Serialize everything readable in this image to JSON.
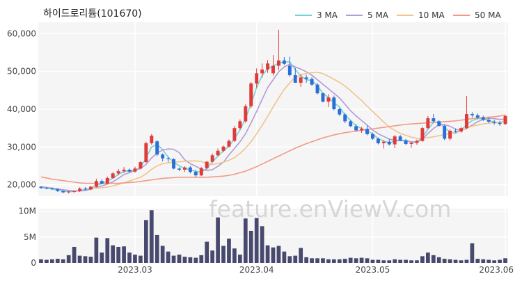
{
  "chart_data": [
    {
      "type": "candlestick",
      "title": "하이드로리튬(101670)",
      "legend_placement": "top-right",
      "legend": [
        {
          "name": "3 MA",
          "color": "#6fd3d0"
        },
        {
          "name": "5 MA",
          "color": "#b39ad8"
        },
        {
          "name": "10 MA",
          "color": "#f2c38a"
        },
        {
          "name": "50 MA",
          "color": "#f29a85"
        }
      ],
      "up_color": "#e03a3a",
      "down_color": "#2a6fd6",
      "ylim": [
        17000,
        63000
      ],
      "y_ticks": [
        20000,
        30000,
        40000,
        50000,
        60000
      ],
      "y_tick_labels": [
        "20,000",
        "30,000",
        "40,000",
        "50,000",
        "60,000"
      ],
      "x_ticks": [
        {
          "i": 17,
          "label": "2023.03"
        },
        {
          "i": 39,
          "label": "2023.04"
        },
        {
          "i": 60,
          "label": "2023.05"
        },
        {
          "i": 84,
          "label": "2023.06"
        }
      ],
      "grid": true,
      "candles": [
        [
          19500,
          19600,
          18900,
          19200
        ],
        [
          19200,
          19400,
          18800,
          19100
        ],
        [
          19100,
          19300,
          18600,
          18900
        ],
        [
          18900,
          19000,
          18100,
          18400
        ],
        [
          18400,
          18600,
          17800,
          18000
        ],
        [
          18000,
          18400,
          17700,
          18200
        ],
        [
          18200,
          18500,
          17900,
          18300
        ],
        [
          18300,
          19300,
          18100,
          19000
        ],
        [
          19000,
          19400,
          18500,
          18800
        ],
        [
          18800,
          19700,
          18600,
          19500
        ],
        [
          19500,
          21600,
          19300,
          21000
        ],
        [
          21000,
          21500,
          20100,
          20300
        ],
        [
          20300,
          22200,
          20100,
          21800
        ],
        [
          21800,
          23400,
          21600,
          23000
        ],
        [
          23000,
          24200,
          22500,
          23600
        ],
        [
          23600,
          24700,
          23100,
          24000
        ],
        [
          24000,
          24300,
          23100,
          23500
        ],
        [
          23500,
          24800,
          23200,
          24300
        ],
        [
          24300,
          26300,
          24100,
          26000
        ],
        [
          26000,
          31400,
          25800,
          31000
        ],
        [
          31000,
          33400,
          30600,
          33000
        ],
        [
          31500,
          31800,
          27600,
          28000
        ],
        [
          28000,
          28300,
          26200,
          27000
        ],
        [
          27000,
          27400,
          26000,
          26800
        ],
        [
          26800,
          27000,
          24100,
          24300
        ],
        [
          24300,
          24600,
          23600,
          24000
        ],
        [
          24000,
          24900,
          23400,
          24600
        ],
        [
          24600,
          25000,
          23000,
          23400
        ],
        [
          23400,
          24000,
          22000,
          22500
        ],
        [
          22500,
          24700,
          22300,
          24400
        ],
        [
          24400,
          26300,
          24100,
          26100
        ],
        [
          26100,
          28300,
          25900,
          27800
        ],
        [
          27800,
          29600,
          27600,
          29000
        ],
        [
          29000,
          30400,
          28600,
          30100
        ],
        [
          30100,
          32000,
          29900,
          31600
        ],
        [
          31600,
          35600,
          31400,
          35000
        ],
        [
          35000,
          37300,
          34500,
          36800
        ],
        [
          36800,
          41300,
          36400,
          40800
        ],
        [
          40800,
          47200,
          40300,
          46800
        ],
        [
          46800,
          50800,
          45700,
          49500
        ],
        [
          49500,
          52100,
          48400,
          50500
        ],
        [
          50500,
          53000,
          49600,
          52100
        ],
        [
          49500,
          54300,
          48900,
          51500
        ],
        [
          51500,
          61000,
          50300,
          52900
        ],
        [
          52900,
          53800,
          51700,
          52000
        ],
        [
          51500,
          53900,
          48600,
          49000
        ],
        [
          49000,
          50900,
          47300,
          47000
        ],
        [
          47000,
          49300,
          45900,
          48400
        ],
        [
          48400,
          49100,
          47000,
          48000
        ],
        [
          48000,
          48500,
          46200,
          46500
        ],
        [
          46500,
          46900,
          43900,
          44200
        ],
        [
          44200,
          44400,
          41800,
          42000
        ],
        [
          42000,
          44000,
          40600,
          43100
        ],
        [
          43100,
          43600,
          39700,
          40000
        ],
        [
          40000,
          40400,
          38200,
          38600
        ],
        [
          38600,
          39000,
          36300,
          36800
        ],
        [
          36800,
          37200,
          35300,
          35500
        ],
        [
          35500,
          36100,
          34100,
          34400
        ],
        [
          34400,
          35300,
          33700,
          34800
        ],
        [
          34800,
          35700,
          33100,
          33400
        ],
        [
          33400,
          33800,
          31900,
          32200
        ],
        [
          32200,
          32500,
          30700,
          31000
        ],
        [
          31000,
          31800,
          29600,
          31400
        ],
        [
          31400,
          32100,
          30400,
          30700
        ],
        [
          30700,
          33200,
          29700,
          32800
        ],
        [
          32800,
          33200,
          31500,
          31700
        ],
        [
          31700,
          32100,
          30500,
          30800
        ],
        [
          30800,
          31300,
          29800,
          31100
        ],
        [
          31100,
          32000,
          30600,
          31600
        ],
        [
          31600,
          35400,
          31400,
          35000
        ],
        [
          35000,
          38200,
          34700,
          37600
        ],
        [
          37600,
          38700,
          36400,
          36800
        ],
        [
          36800,
          37100,
          35400,
          35600
        ],
        [
          35600,
          36000,
          31800,
          32200
        ],
        [
          32200,
          34700,
          31700,
          34300
        ],
        [
          34300,
          34900,
          33800,
          34100
        ],
        [
          34100,
          35300,
          33800,
          35000
        ],
        [
          35000,
          43500,
          34700,
          38700
        ],
        [
          38700,
          39200,
          37800,
          38400
        ],
        [
          38400,
          38900,
          37400,
          37800
        ],
        [
          37800,
          38300,
          36900,
          37200
        ],
        [
          37200,
          37800,
          36300,
          36700
        ],
        [
          36700,
          37200,
          35900,
          36400
        ],
        [
          36400,
          36900,
          35600,
          36100
        ],
        [
          36100,
          38500,
          35800,
          38200
        ]
      ],
      "ma": {
        "3 MA": [
          19300,
          19100,
          18900,
          18600,
          18300,
          18200,
          18200,
          18500,
          18700,
          19100,
          19800,
          20300,
          21000,
          21700,
          22800,
          23500,
          23700,
          23800,
          24600,
          27100,
          30000,
          30700,
          29300,
          27300,
          26000,
          25000,
          24300,
          24000,
          23500,
          23400,
          24300,
          26100,
          27600,
          29000,
          30200,
          32200,
          34500,
          37500,
          41500,
          45700,
          48900,
          50700,
          51400,
          52200,
          52500,
          52500,
          50500,
          48800,
          47800,
          47600,
          46200,
          44200,
          43100,
          41700,
          40600,
          38500,
          37000,
          35600,
          34900,
          34300,
          33500,
          32200,
          31600,
          31100,
          31600,
          31700,
          31800,
          31300,
          31200,
          32600,
          34700,
          36500,
          36700,
          35100,
          34000,
          33600,
          34500,
          35900,
          37000,
          37500,
          37500,
          37000,
          36600,
          36400,
          37000
        ],
        "5 MA": [
          19500,
          19300,
          19100,
          18900,
          18700,
          18500,
          18400,
          18400,
          18500,
          18800,
          19300,
          19700,
          20200,
          20800,
          21700,
          22700,
          23200,
          23800,
          24300,
          25400,
          27100,
          28400,
          29200,
          29500,
          29400,
          28500,
          26600,
          25600,
          24900,
          24100,
          23800,
          24000,
          24900,
          26000,
          27900,
          29600,
          31400,
          33500,
          36400,
          39400,
          42600,
          45700,
          47800,
          49900,
          51200,
          51900,
          51200,
          50600,
          49900,
          49000,
          47800,
          46600,
          45400,
          44200,
          43000,
          41300,
          39600,
          38200,
          37000,
          35800,
          34500,
          33500,
          32800,
          32100,
          31800,
          31800,
          31500,
          31400,
          31300,
          32100,
          33600,
          34900,
          35900,
          35900,
          35500,
          34700,
          34400,
          34900,
          35800,
          36700,
          37300,
          37600,
          37500,
          37300,
          37400
        ],
        "10 MA": [
          null,
          null,
          null,
          null,
          null,
          null,
          null,
          null,
          null,
          19100,
          19100,
          19200,
          19400,
          19700,
          20100,
          20500,
          21000,
          21500,
          22000,
          22900,
          24100,
          25000,
          25600,
          25800,
          26000,
          26100,
          26200,
          26300,
          26300,
          26200,
          25600,
          25400,
          25600,
          26000,
          26500,
          27200,
          28300,
          29700,
          31400,
          33500,
          35700,
          38100,
          40600,
          43000,
          45200,
          47000,
          48400,
          49000,
          49500,
          49700,
          49800,
          49400,
          48700,
          47900,
          47100,
          46100,
          44900,
          43600,
          42300,
          40800,
          39400,
          38000,
          36600,
          35300,
          34400,
          33600,
          33100,
          32600,
          32300,
          32300,
          32500,
          32700,
          33000,
          33300,
          33600,
          34000,
          34500,
          35000,
          35500,
          35800,
          36100,
          36300,
          36400,
          36500,
          36800
        ],
        "50 MA": [
          22100,
          21800,
          21500,
          21300,
          21100,
          20900,
          20700,
          20500,
          20400,
          20400,
          20400,
          20400,
          20400,
          20400,
          20400,
          20500,
          20600,
          20700,
          20900,
          21100,
          21300,
          21500,
          21700,
          21800,
          21900,
          22000,
          22000,
          22000,
          22000,
          22000,
          22000,
          22100,
          22200,
          22300,
          22500,
          22800,
          23200,
          23600,
          24200,
          24800,
          25500,
          26200,
          26900,
          27600,
          28300,
          29000,
          29700,
          30300,
          30900,
          31400,
          31900,
          32400,
          32800,
          33200,
          33500,
          33800,
          34000,
          34200,
          34400,
          34600,
          34800,
          35000,
          35200,
          35400,
          35600,
          35800,
          36000,
          36100,
          36200,
          36300,
          36400,
          36500,
          36600,
          36700,
          36800,
          36900,
          37100,
          37300,
          37500,
          37700,
          37800,
          37900,
          38000,
          38200,
          38500
        ]
      }
    },
    {
      "type": "bar",
      "ylim": [
        0,
        10500000
      ],
      "y_ticks": [
        0,
        5000000,
        10000000
      ],
      "y_tick_labels": [
        "0",
        "5M",
        "10M"
      ],
      "bar_color": "#474a6e",
      "values": [
        700000,
        600000,
        700000,
        800000,
        700000,
        1500000,
        3100000,
        1400000,
        1300000,
        1200000,
        4900000,
        2000000,
        4800000,
        3400000,
        3100000,
        3200000,
        2000000,
        1600000,
        1400000,
        8300000,
        10200000,
        5400000,
        3300000,
        2200000,
        1400000,
        1600000,
        1200000,
        1100000,
        1000000,
        1500000,
        4100000,
        2400000,
        8800000,
        3300000,
        4700000,
        2800000,
        1600000,
        8600000,
        6200000,
        8700000,
        7100000,
        3400000,
        3000000,
        3300000,
        2200000,
        1300000,
        1400000,
        2900000,
        1100000,
        900000,
        900000,
        900000,
        700000,
        700000,
        700000,
        800000,
        1000000,
        900000,
        1000000,
        900000,
        600000,
        600000,
        500000,
        500000,
        700000,
        600000,
        600000,
        500000,
        500000,
        1300000,
        2000000,
        1500000,
        1100000,
        800000,
        700000,
        600000,
        500000,
        600000,
        3800000,
        800000,
        700000,
        600000,
        500000,
        600000,
        900000
      ]
    }
  ],
  "watermark": "feature.enViewV.com"
}
